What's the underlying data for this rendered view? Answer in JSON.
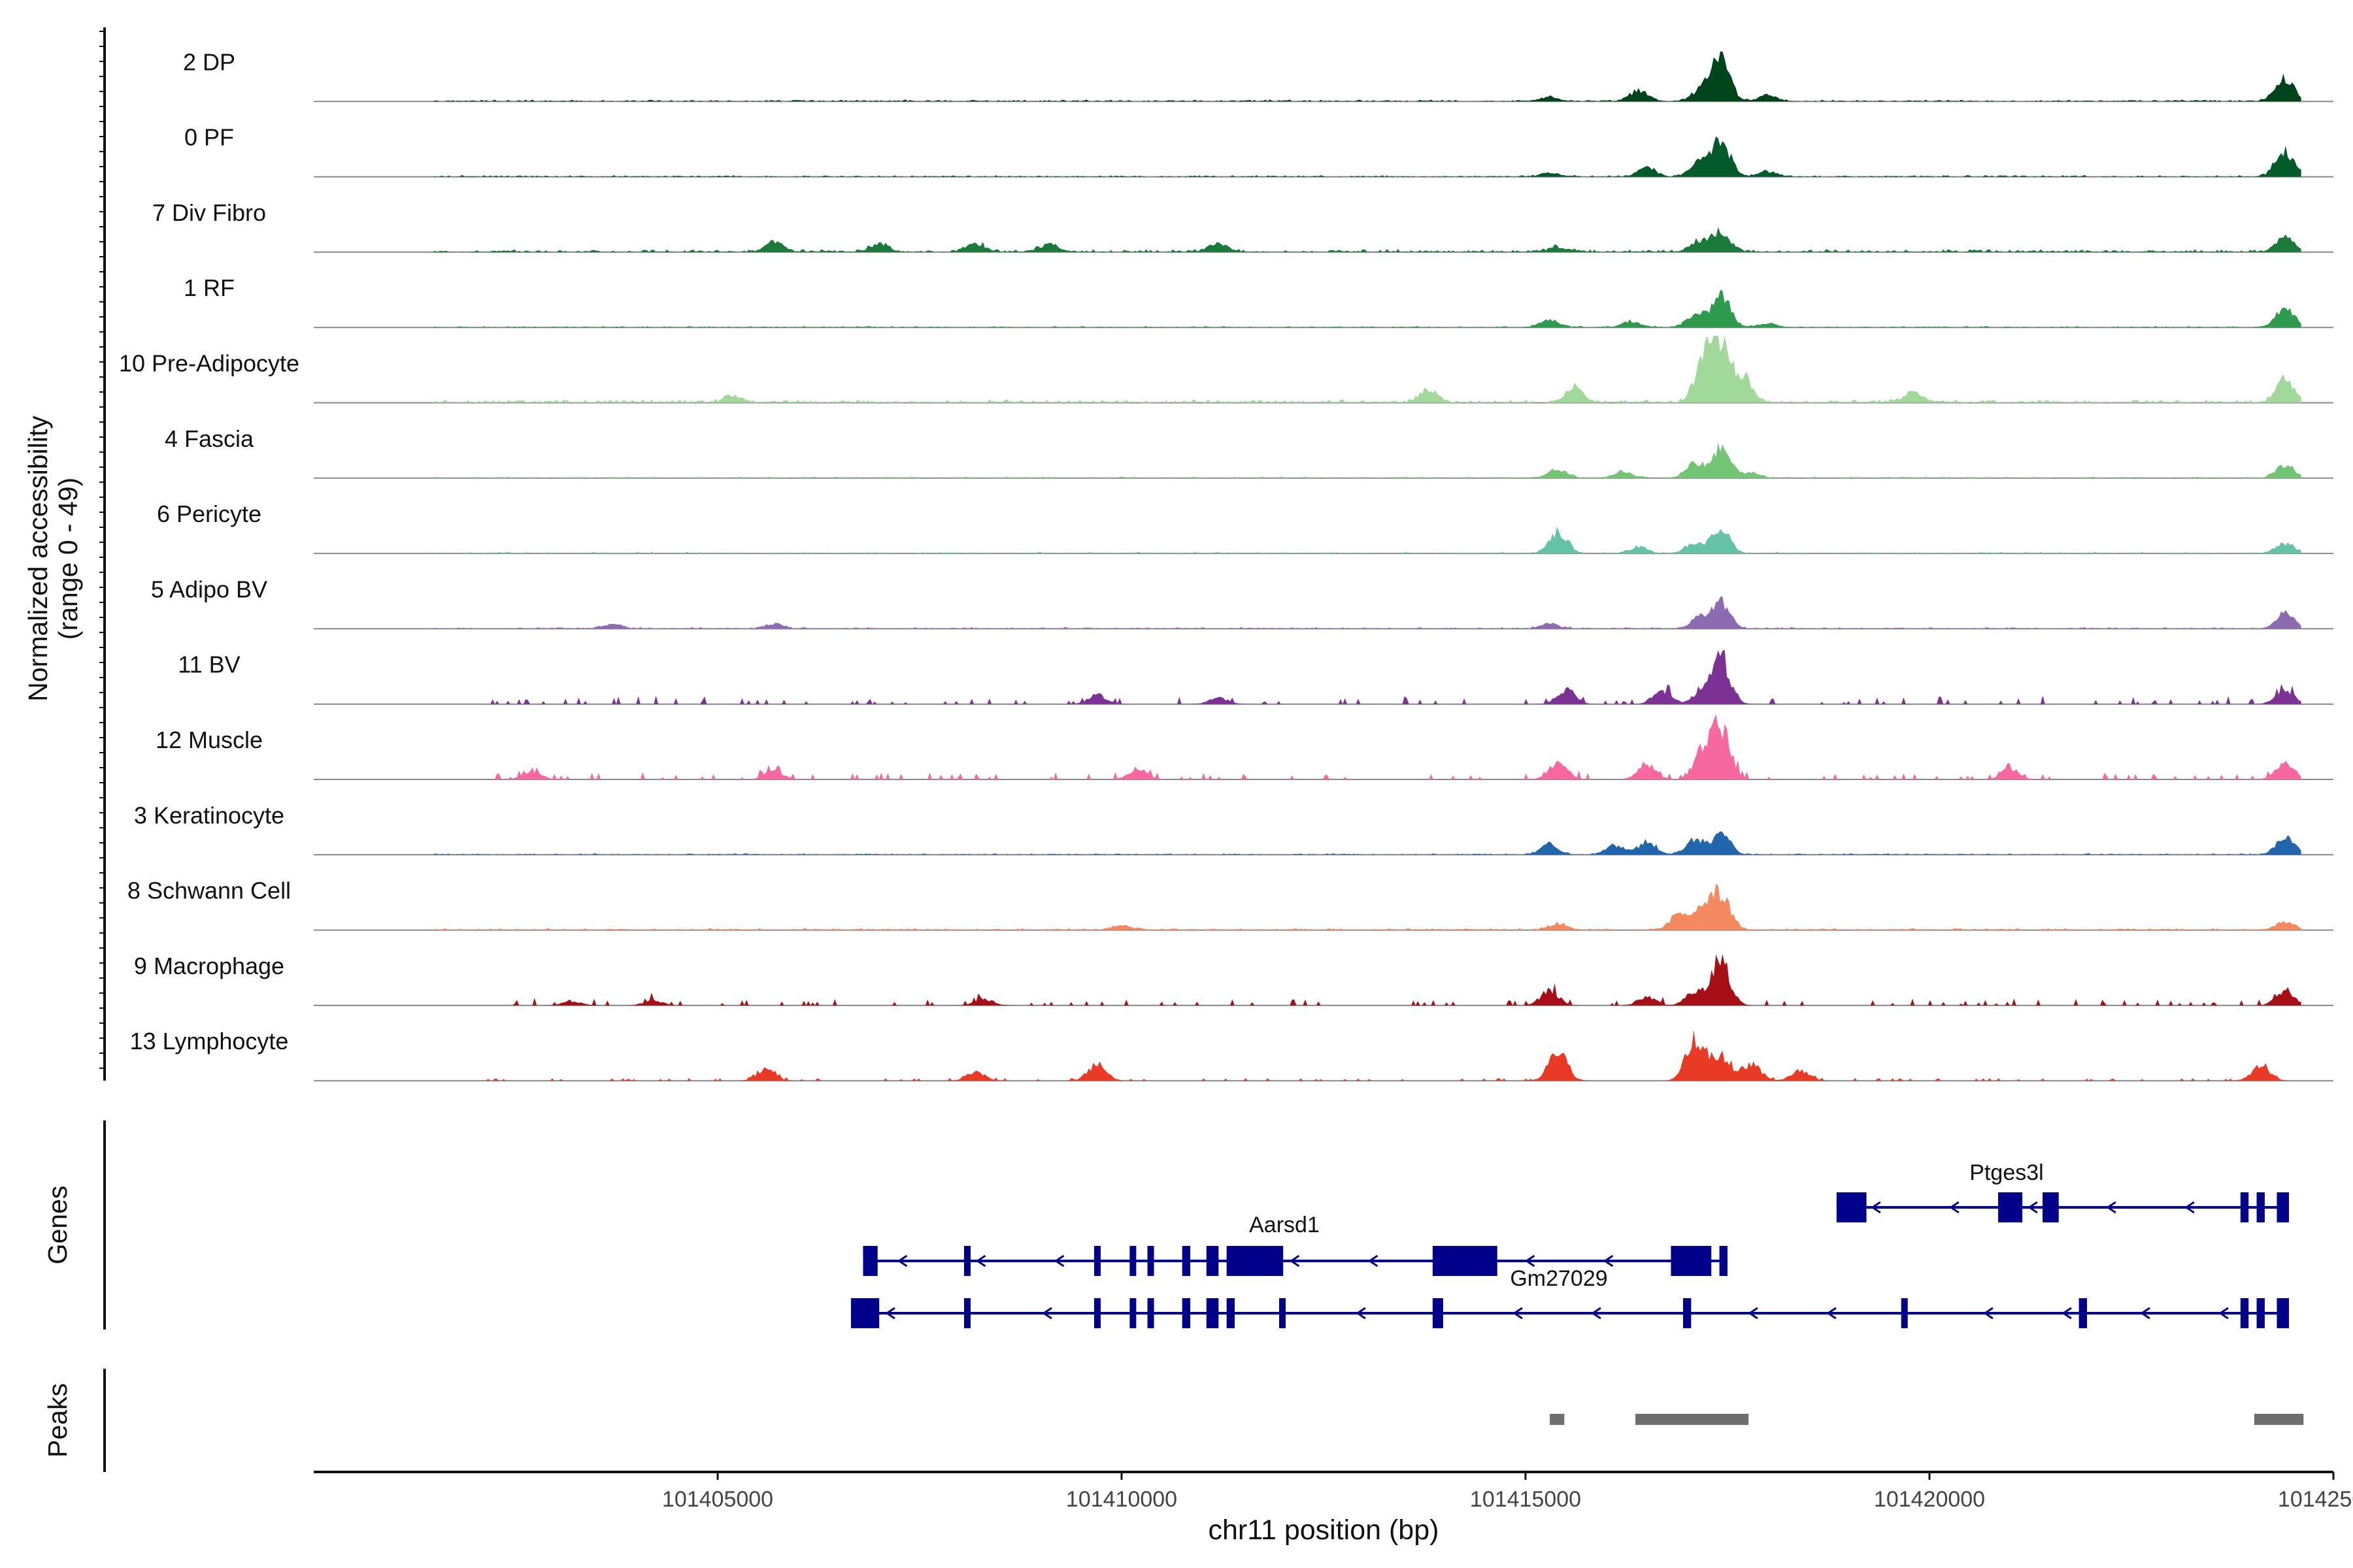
{
  "chart_data": {
    "type": "coverage-track",
    "chromosome": "chr11",
    "x_range": [
      101400000,
      101425000
    ],
    "xlabel": "chr11 position (bp)",
    "x_ticks": [
      101405000,
      101410000,
      101415000,
      101420000,
      101425000
    ],
    "x_tick_labels": [
      "101405000",
      "101410000",
      "101415000",
      "101420000",
      "101425000"
    ],
    "ylabel_line1": "Normalized accessibility",
    "ylabel_line2": "(range 0 - 49)",
    "y_range": [
      0,
      49
    ],
    "genes_label": "Genes",
    "peaks_label": "Peaks",
    "tracks": [
      {
        "label": "2 DP",
        "color": "#00441b",
        "peaks": [
          [
            101417420,
            0.95
          ],
          [
            101417200,
            0.35
          ],
          [
            101416400,
            0.25
          ],
          [
            101415300,
            0.1
          ],
          [
            101424400,
            0.55
          ],
          [
            101418000,
            0.15
          ]
        ],
        "noise": 0.04,
        "seed": 1,
        "sparse": false
      },
      {
        "label": "0 PF",
        "color": "#005a2a",
        "peaks": [
          [
            101417420,
            0.85
          ],
          [
            101417150,
            0.3
          ],
          [
            101416500,
            0.2
          ],
          [
            101415300,
            0.1
          ],
          [
            101424400,
            0.6
          ],
          [
            101418000,
            0.12
          ]
        ],
        "noise": 0.035,
        "seed": 2,
        "sparse": false
      },
      {
        "label": "7 Div Fibro",
        "color": "#1b7a3a",
        "peaks": [
          [
            101417420,
            0.45
          ],
          [
            101417150,
            0.25
          ],
          [
            101405700,
            0.22
          ],
          [
            101407000,
            0.18
          ],
          [
            101408200,
            0.2
          ],
          [
            101409100,
            0.18
          ],
          [
            101411200,
            0.22
          ],
          [
            101424400,
            0.35
          ],
          [
            101415400,
            0.12
          ]
        ],
        "noise": 0.06,
        "seed": 3,
        "sparse": false
      },
      {
        "label": "1 RF",
        "color": "#2e9a4e",
        "peaks": [
          [
            101417420,
            0.8
          ],
          [
            101417100,
            0.3
          ],
          [
            101415300,
            0.2
          ],
          [
            101416300,
            0.15
          ],
          [
            101424400,
            0.45
          ],
          [
            101418000,
            0.1
          ]
        ],
        "noise": 0.03,
        "seed": 4,
        "sparse": false
      },
      {
        "label": "10 Pre-Adipocyte",
        "color": "#a1d99b",
        "peaks": [
          [
            101417420,
            1.4
          ],
          [
            101417200,
            0.9
          ],
          [
            101417700,
            0.6
          ],
          [
            101413800,
            0.3
          ],
          [
            101415600,
            0.35
          ],
          [
            101424400,
            0.55
          ],
          [
            101419800,
            0.25
          ],
          [
            101405200,
            0.15
          ]
        ],
        "noise": 0.07,
        "seed": 5,
        "sparse": false
      },
      {
        "label": "4 Fascia",
        "color": "#74c476",
        "peaks": [
          [
            101417420,
            0.7
          ],
          [
            101417100,
            0.35
          ],
          [
            101415400,
            0.2
          ],
          [
            101416200,
            0.15
          ],
          [
            101424400,
            0.3
          ],
          [
            101417800,
            0.12
          ]
        ],
        "noise": 0.03,
        "seed": 6,
        "sparse": false
      },
      {
        "label": "6 Pericyte",
        "color": "#66c2a4",
        "peaks": [
          [
            101415400,
            0.5
          ],
          [
            101417420,
            0.55
          ],
          [
            101417100,
            0.25
          ],
          [
            101416400,
            0.15
          ],
          [
            101424400,
            0.25
          ]
        ],
        "noise": 0.03,
        "seed": 7,
        "sparse": false
      },
      {
        "label": "5 Adipo BV",
        "color": "#8c6bb1",
        "peaks": [
          [
            101417420,
            0.6
          ],
          [
            101417150,
            0.25
          ],
          [
            101415300,
            0.12
          ],
          [
            101424400,
            0.35
          ],
          [
            101405700,
            0.12
          ],
          [
            101403700,
            0.1
          ]
        ],
        "noise": 0.035,
        "seed": 8,
        "sparse": false
      },
      {
        "label": "11 BV",
        "color": "#7b3294",
        "peaks": [
          [
            101417420,
            1.0
          ],
          [
            101417200,
            0.35
          ],
          [
            101416700,
            0.3
          ],
          [
            101415500,
            0.35
          ],
          [
            101409700,
            0.22
          ],
          [
            101424400,
            0.35
          ],
          [
            101411200,
            0.15
          ]
        ],
        "noise": 0.06,
        "seed": 9,
        "sparse": true
      },
      {
        "label": "12 Muscle",
        "color": "#f768a1",
        "peaks": [
          [
            101417420,
            1.2
          ],
          [
            101417200,
            0.7
          ],
          [
            101415400,
            0.4
          ],
          [
            101416500,
            0.35
          ],
          [
            101424400,
            0.4
          ],
          [
            101410200,
            0.25
          ],
          [
            101405700,
            0.2
          ],
          [
            101402700,
            0.2
          ],
          [
            101421000,
            0.25
          ]
        ],
        "noise": 0.06,
        "seed": 10,
        "sparse": true
      },
      {
        "label": "3 Keratinocyte",
        "color": "#2166ac",
        "peaks": [
          [
            101417420,
            0.5
          ],
          [
            101417100,
            0.35
          ],
          [
            101416500,
            0.3
          ],
          [
            101415300,
            0.25
          ],
          [
            101424400,
            0.4
          ],
          [
            101416100,
            0.2
          ]
        ],
        "noise": 0.03,
        "seed": 11,
        "sparse": false
      },
      {
        "label": "8 Schwann Cell",
        "color": "#f4895f",
        "peaks": [
          [
            101417420,
            0.8
          ],
          [
            101417200,
            0.5
          ],
          [
            101416900,
            0.35
          ],
          [
            101415400,
            0.15
          ],
          [
            101424400,
            0.2
          ],
          [
            101410000,
            0.1
          ]
        ],
        "noise": 0.04,
        "seed": 12,
        "sparse": false
      },
      {
        "label": "9 Macrophage",
        "color": "#a50f15",
        "peaks": [
          [
            101417420,
            1.0
          ],
          [
            101417100,
            0.35
          ],
          [
            101415300,
            0.35
          ],
          [
            101416500,
            0.2
          ],
          [
            101424400,
            0.35
          ],
          [
            101408300,
            0.15
          ],
          [
            101404200,
            0.12
          ],
          [
            101403200,
            0.1
          ]
        ],
        "noise": 0.05,
        "seed": 13,
        "sparse": true
      },
      {
        "label": "13 Lymphocyte",
        "color": "#e83a24",
        "peaks": [
          [
            101417100,
            1.0
          ],
          [
            101417420,
            0.6
          ],
          [
            101417800,
            0.4
          ],
          [
            101415400,
            0.7
          ],
          [
            101409700,
            0.4
          ],
          [
            101408200,
            0.2
          ],
          [
            101405600,
            0.25
          ],
          [
            101424100,
            0.35
          ],
          [
            101418400,
            0.25
          ]
        ],
        "noise": 0.0,
        "seed": 14,
        "sparse": true
      }
    ],
    "genes": [
      {
        "name": "Ptges3l",
        "strand": "-",
        "start": 101418850,
        "end": 101424450,
        "exons": [
          [
            101418850,
            101419220
          ],
          [
            101420850,
            101421150
          ],
          [
            101421400,
            101421600
          ],
          [
            101423850,
            101423950
          ],
          [
            101424050,
            101424150
          ],
          [
            101424300,
            101424450
          ]
        ]
      },
      {
        "name": "Aarsd1",
        "strand": "-",
        "start": 101406800,
        "end": 101417500,
        "exons": [
          [
            101406800,
            101406980
          ],
          [
            101408050,
            101408130
          ],
          [
            101409660,
            101409720
          ],
          [
            101410100,
            101410170
          ],
          [
            101410320,
            101410380
          ],
          [
            101410750,
            101410850
          ],
          [
            101411050,
            101411200
          ],
          [
            101411300,
            101412000
          ],
          [
            101413850,
            101414650
          ],
          [
            101416800,
            101417300
          ],
          [
            101417400,
            101417500
          ]
        ]
      },
      {
        "name": "Gm27029",
        "strand": "-",
        "start": 101406650,
        "end": 101424450,
        "exons": [
          [
            101406650,
            101407000
          ],
          [
            101408050,
            101408130
          ],
          [
            101409660,
            101409720
          ],
          [
            101410100,
            101410170
          ],
          [
            101410320,
            101410380
          ],
          [
            101410750,
            101410850
          ],
          [
            101411050,
            101411200
          ],
          [
            101411300,
            101411400
          ],
          [
            101411950,
            101412000
          ],
          [
            101413850,
            101413980
          ],
          [
            101416950,
            101417050
          ],
          [
            101419650,
            101419700
          ],
          [
            101421850,
            101421950
          ],
          [
            101423850,
            101423950
          ],
          [
            101424050,
            101424150
          ],
          [
            101424300,
            101424450
          ]
        ]
      }
    ],
    "peak_regions": [
      [
        101415300,
        101415480
      ],
      [
        101416360,
        101417760
      ],
      [
        101424020,
        101424630
      ]
    ]
  }
}
